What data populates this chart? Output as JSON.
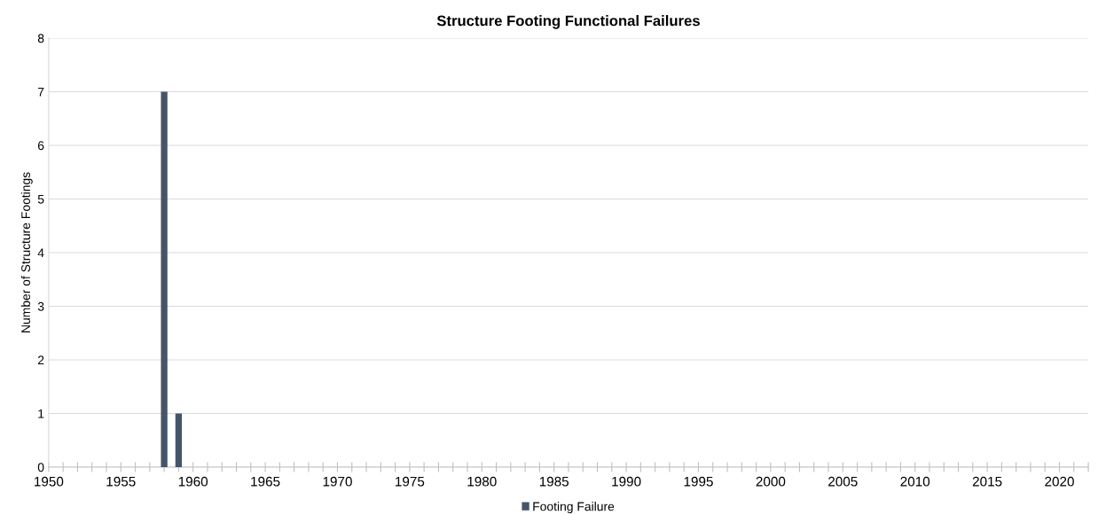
{
  "chart_data": {
    "type": "bar",
    "title": "Structure Footing Functional Failures",
    "ylabel": "Number of Structure Footings",
    "x": [
      1958,
      1959
    ],
    "series": [
      {
        "name": "Footing Failure",
        "color": "#44546a",
        "values": [
          7,
          1
        ]
      }
    ],
    "xlim": [
      1950,
      2022
    ],
    "xticks": [
      1950,
      {
        "value": 1951,
        "label": null
      },
      {
        "value": 1952,
        "label": null
      },
      {
        "value": 1953,
        "label": null
      },
      {
        "value": 1954,
        "label": null
      },
      1955,
      {
        "value": 1956,
        "label": null
      },
      {
        "value": 1957,
        "label": null
      },
      {
        "value": 1958,
        "label": null
      },
      {
        "value": 1959,
        "label": null
      },
      1960,
      {
        "value": 1961,
        "label": null
      },
      {
        "value": 1962,
        "label": null
      },
      {
        "value": 1963,
        "label": null
      },
      {
        "value": 1964,
        "label": null
      },
      1965,
      {
        "value": 1966,
        "label": null
      },
      {
        "value": 1967,
        "label": null
      },
      {
        "value": 1968,
        "label": null
      },
      {
        "value": 1969,
        "label": null
      },
      1970,
      {
        "value": 1971,
        "label": null
      },
      {
        "value": 1972,
        "label": null
      },
      {
        "value": 1973,
        "label": null
      },
      {
        "value": 1974,
        "label": null
      },
      1975,
      {
        "value": 1976,
        "label": null
      },
      {
        "value": 1977,
        "label": null
      },
      {
        "value": 1978,
        "label": null
      },
      {
        "value": 1979,
        "label": null
      },
      1980,
      {
        "value": 1981,
        "label": null
      },
      {
        "value": 1982,
        "label": null
      },
      {
        "value": 1983,
        "label": null
      },
      {
        "value": 1984,
        "label": null
      },
      1985,
      {
        "value": 1986,
        "label": null
      },
      {
        "value": 1987,
        "label": null
      },
      {
        "value": 1988,
        "label": null
      },
      {
        "value": 1989,
        "label": null
      },
      1990,
      {
        "value": 1991,
        "label": null
      },
      {
        "value": 1992,
        "label": null
      },
      {
        "value": 1993,
        "label": null
      },
      {
        "value": 1994,
        "label": null
      },
      1995,
      {
        "value": 1996,
        "label": null
      },
      {
        "value": 1997,
        "label": null
      },
      {
        "value": 1998,
        "label": null
      },
      {
        "value": 1999,
        "label": null
      },
      2000,
      {
        "value": 2001,
        "label": null
      },
      {
        "value": 2002,
        "label": null
      },
      {
        "value": 2003,
        "label": null
      },
      {
        "value": 2004,
        "label": null
      },
      2005,
      {
        "value": 2006,
        "label": null
      },
      {
        "value": 2007,
        "label": null
      },
      {
        "value": 2008,
        "label": null
      },
      {
        "value": 2009,
        "label": null
      },
      2010,
      {
        "value": 2011,
        "label": null
      },
      {
        "value": 2012,
        "label": null
      },
      {
        "value": 2013,
        "label": null
      },
      {
        "value": 2014,
        "label": null
      },
      2015,
      {
        "value": 2016,
        "label": null
      },
      {
        "value": 2017,
        "label": null
      },
      {
        "value": 2018,
        "label": null
      },
      {
        "value": 2019,
        "label": null
      },
      2020,
      {
        "value": 2021,
        "label": null
      },
      {
        "value": 2022,
        "label": null
      }
    ],
    "ylim": [
      0,
      8
    ],
    "yticks": [
      0,
      1,
      2,
      3,
      4,
      5,
      6,
      7,
      8
    ],
    "grid": "y",
    "legend": "bottom"
  }
}
